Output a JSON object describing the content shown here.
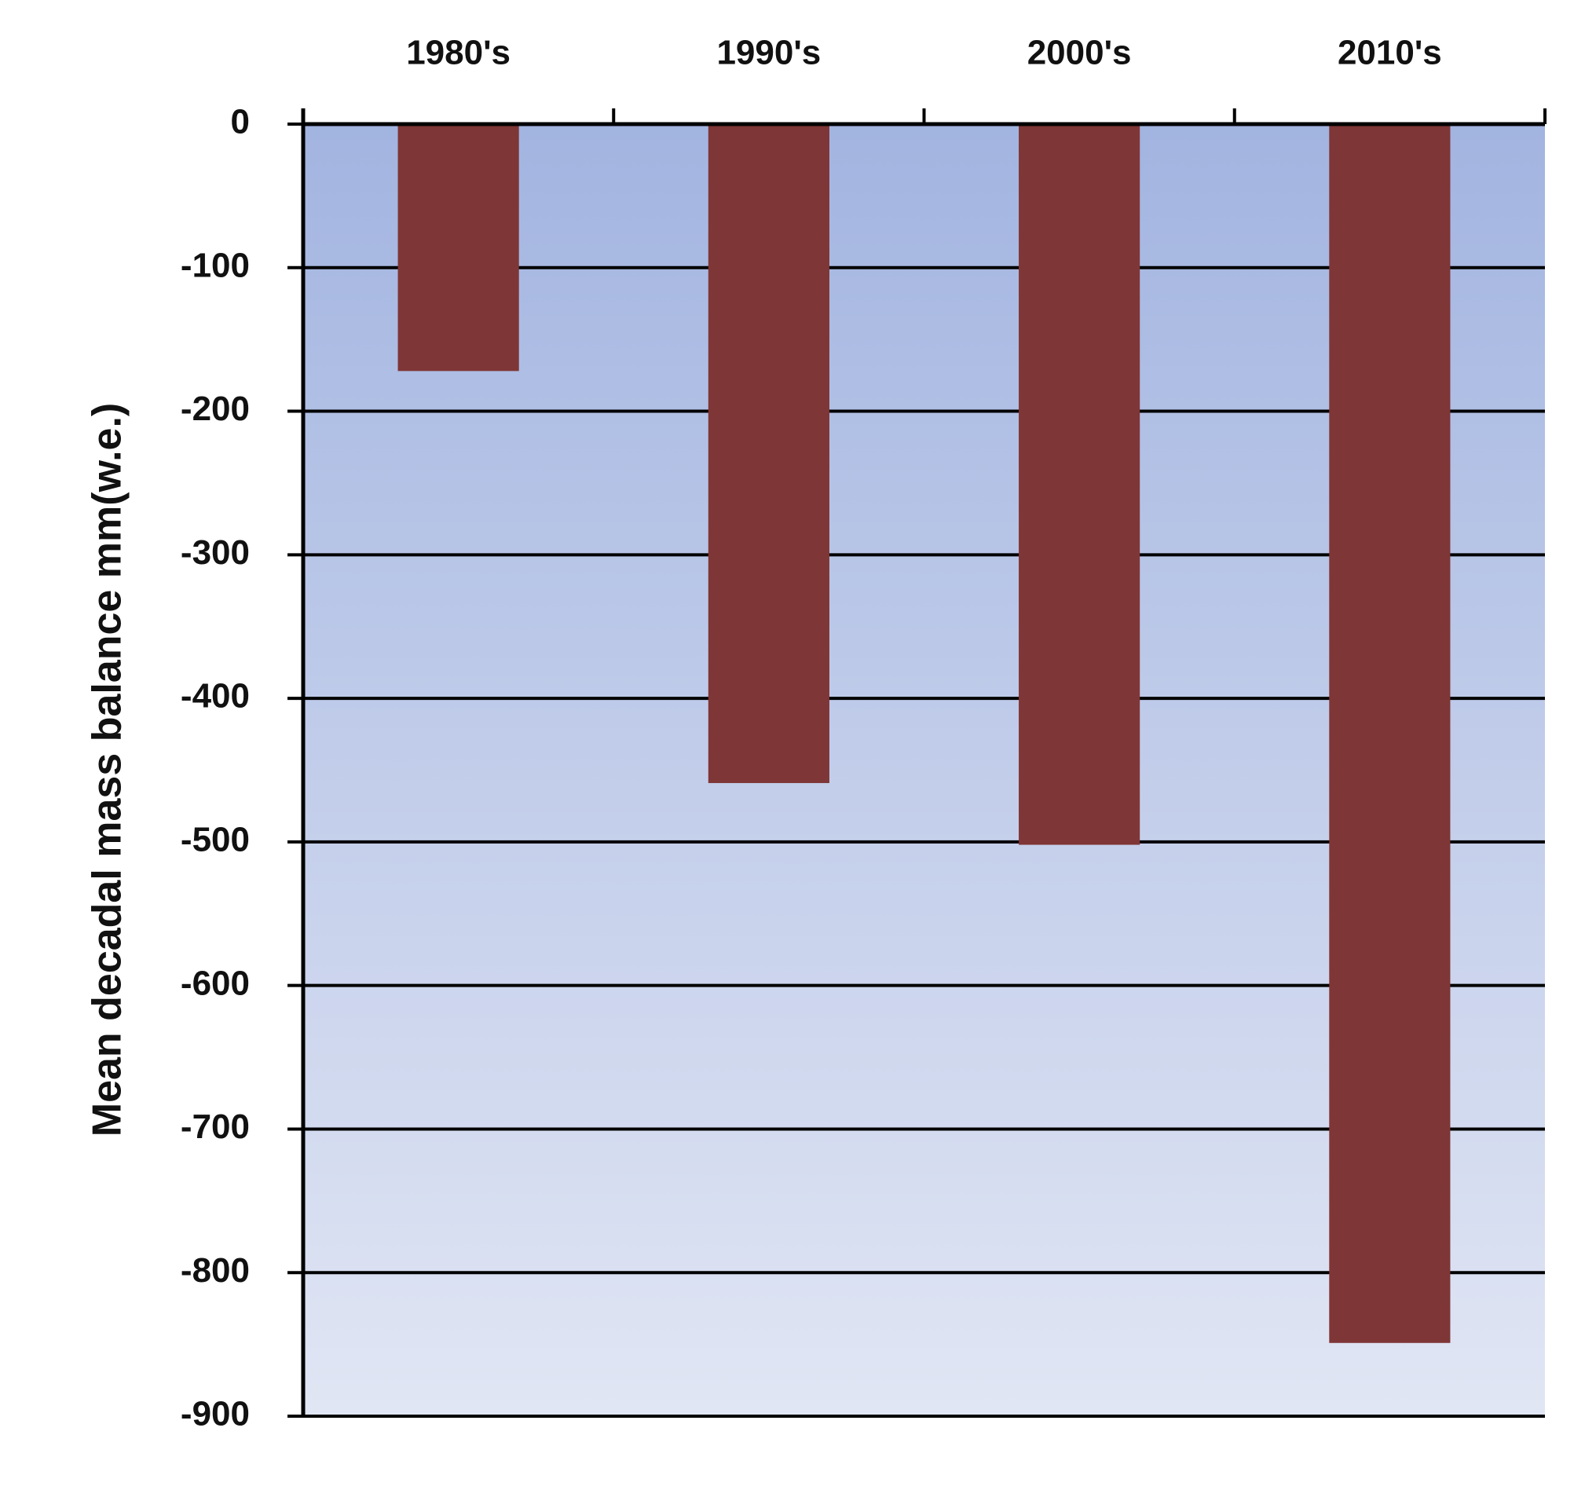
{
  "chart_data": {
    "type": "bar",
    "y_label": "Mean decadal mass balance mm(w.e.)",
    "categories": [
      "1980's",
      "1990's",
      "2000's",
      "2010's"
    ],
    "values": [
      -172,
      -459,
      -502,
      -849
    ],
    "color": "#7f3636",
    "ylim": [
      -900,
      0
    ],
    "yticks": [
      0,
      -100,
      -200,
      -300,
      -400,
      -500,
      -600,
      -700,
      -800,
      -900
    ],
    "grid": true,
    "x_axis_position": "top"
  }
}
